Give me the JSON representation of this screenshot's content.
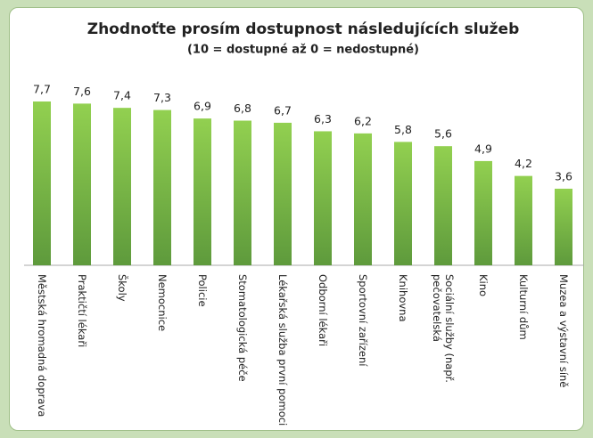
{
  "chart_data": {
    "type": "bar",
    "title": "Zhodnoťte prosím dostupnost následujících služeb",
    "subtitle": "(10 = dostupné až 0 = nedostupné)",
    "categories": [
      "Městská hromadná doprava",
      "Praktičtí lékaři",
      "Školy",
      "Nemocnice",
      "Policie",
      "Stomatologická péče",
      "Lékařská služba první pomoci",
      "Odborní lékaři",
      "Sportovní zařízení",
      "Knihovna",
      "Sociální služby (např.\npečovatelská",
      "Kino",
      "Kulturní dům",
      "Muzea a výstavní síně"
    ],
    "values": [
      7.7,
      7.6,
      7.4,
      7.3,
      6.9,
      6.8,
      6.7,
      6.3,
      6.2,
      5.8,
      5.6,
      4.9,
      4.2,
      3.6
    ],
    "value_labels": [
      "7,7",
      "7,6",
      "7,4",
      "7,3",
      "6,9",
      "6,8",
      "6,7",
      "6,3",
      "6,2",
      "5,8",
      "5,6",
      "4,9",
      "4,2",
      "3,6"
    ],
    "color": "#92d050"
  }
}
